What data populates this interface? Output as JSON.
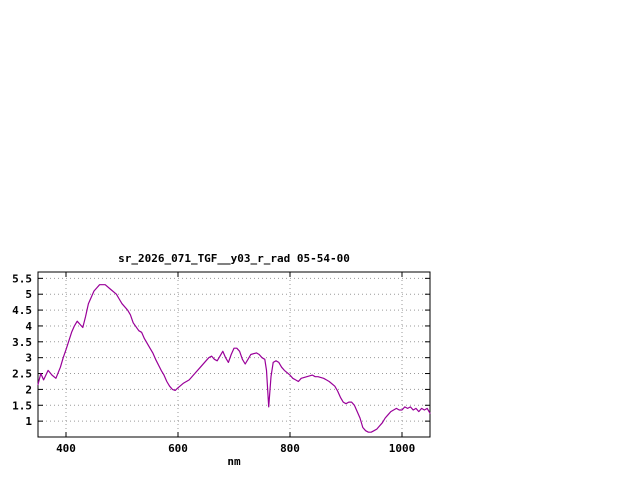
{
  "chart_data": {
    "type": "line",
    "title": "sr_2026_071_TGF__y03_r_rad 05-54-00",
    "xlabel": "nm",
    "ylabel": "",
    "xlim": [
      350,
      1050
    ],
    "ylim": [
      0.5,
      5.7
    ],
    "grid": true,
    "legend": "none",
    "line_color": "#990099",
    "grid_color": "#9a9a9a",
    "border_color": "#000000",
    "x_ticks": [
      {
        "value": 400,
        "label": "400"
      },
      {
        "value": 600,
        "label": "600"
      },
      {
        "value": 800,
        "label": "800"
      },
      {
        "value": 1000,
        "label": "1000"
      }
    ],
    "y_ticks": [
      {
        "value": 1,
        "label": "1"
      },
      {
        "value": 1.5,
        "label": "1.5"
      },
      {
        "value": 2,
        "label": "2"
      },
      {
        "value": 2.5,
        "label": "2.5"
      },
      {
        "value": 3,
        "label": "3"
      },
      {
        "value": 3.5,
        "label": "3.5"
      },
      {
        "value": 4,
        "label": "4"
      },
      {
        "value": 4.5,
        "label": "4.5"
      },
      {
        "value": 5,
        "label": "5"
      },
      {
        "value": 5.5,
        "label": "5.5"
      }
    ],
    "series": [
      {
        "name": "sr_2026_071_TGF__y03_r_rad",
        "x": [
          350,
          355,
          360,
          368,
          375,
          382,
          390,
          395,
          400,
          410,
          415,
          420,
          425,
          430,
          435,
          440,
          450,
          455,
          460,
          470,
          480,
          490,
          495,
          500,
          510,
          515,
          520,
          530,
          535,
          540,
          550,
          555,
          560,
          570,
          575,
          580,
          585,
          590,
          595,
          600,
          610,
          615,
          620,
          630,
          640,
          650,
          655,
          660,
          665,
          670,
          675,
          680,
          685,
          690,
          695,
          700,
          705,
          710,
          715,
          720,
          725,
          730,
          740,
          745,
          750,
          755,
          758,
          762,
          766,
          770,
          775,
          780,
          785,
          790,
          800,
          805,
          810,
          815,
          820,
          830,
          840,
          845,
          850,
          860,
          865,
          870,
          880,
          885,
          890,
          895,
          900,
          905,
          910,
          915,
          920,
          925,
          930,
          935,
          940,
          945,
          950,
          955,
          960,
          965,
          970,
          975,
          980,
          985,
          990,
          995,
          1000,
          1005,
          1010,
          1015,
          1020,
          1025,
          1030,
          1035,
          1040,
          1045,
          1050
        ],
        "y": [
          2.15,
          2.5,
          2.3,
          2.6,
          2.45,
          2.35,
          2.7,
          3.0,
          3.25,
          3.8,
          4.0,
          4.15,
          4.05,
          3.95,
          4.3,
          4.7,
          5.1,
          5.2,
          5.3,
          5.3,
          5.15,
          5.0,
          4.85,
          4.7,
          4.5,
          4.35,
          4.1,
          3.85,
          3.8,
          3.6,
          3.3,
          3.15,
          2.95,
          2.6,
          2.45,
          2.25,
          2.1,
          2.0,
          1.97,
          2.05,
          2.2,
          2.25,
          2.3,
          2.5,
          2.7,
          2.9,
          3.0,
          3.05,
          2.95,
          2.9,
          3.05,
          3.2,
          3.0,
          2.85,
          3.1,
          3.3,
          3.3,
          3.2,
          2.95,
          2.8,
          2.95,
          3.1,
          3.15,
          3.1,
          3.0,
          2.95,
          2.6,
          1.45,
          2.4,
          2.85,
          2.9,
          2.85,
          2.7,
          2.6,
          2.45,
          2.35,
          2.3,
          2.25,
          2.35,
          2.4,
          2.45,
          2.4,
          2.4,
          2.35,
          2.3,
          2.25,
          2.1,
          1.95,
          1.75,
          1.6,
          1.55,
          1.6,
          1.6,
          1.5,
          1.3,
          1.1,
          0.8,
          0.7,
          0.65,
          0.65,
          0.7,
          0.75,
          0.85,
          0.95,
          1.1,
          1.2,
          1.3,
          1.35,
          1.4,
          1.35,
          1.35,
          1.45,
          1.4,
          1.45,
          1.35,
          1.4,
          1.3,
          1.4,
          1.35,
          1.4,
          1.25
        ]
      }
    ]
  }
}
